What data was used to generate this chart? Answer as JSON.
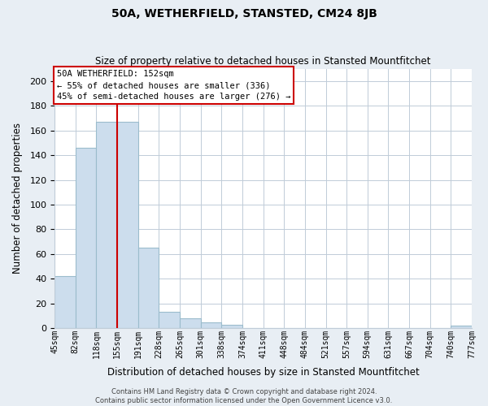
{
  "title": "50A, WETHERFIELD, STANSTED, CM24 8JB",
  "subtitle": "Size of property relative to detached houses in Stansted Mountfitchet",
  "xlabel": "Distribution of detached houses by size in Stansted Mountfitchet",
  "ylabel": "Number of detached properties",
  "bar_values": [
    42,
    146,
    167,
    167,
    65,
    13,
    8,
    5,
    3,
    0,
    0,
    0,
    0,
    0,
    0,
    0,
    0,
    0,
    0,
    2
  ],
  "bar_labels": [
    "45sqm",
    "82sqm",
    "118sqm",
    "155sqm",
    "191sqm",
    "228sqm",
    "265sqm",
    "301sqm",
    "338sqm",
    "374sqm",
    "411sqm",
    "448sqm",
    "484sqm",
    "521sqm",
    "557sqm",
    "594sqm",
    "631sqm",
    "667sqm",
    "704sqm",
    "740sqm",
    "777sqm"
  ],
  "bar_color": "#ccdded",
  "bar_edge_color": "#9bbccc",
  "vline_x": 3.0,
  "vline_color": "#cc0000",
  "annotation_line1": "50A WETHERFIELD: 152sqm",
  "annotation_line2": "← 55% of detached houses are smaller (336)",
  "annotation_line3": "45% of semi-detached houses are larger (276) →",
  "ylim": [
    0,
    210
  ],
  "yticks": [
    0,
    20,
    40,
    60,
    80,
    100,
    120,
    140,
    160,
    180,
    200
  ],
  "footer_text": "Contains HM Land Registry data © Crown copyright and database right 2024.\nContains public sector information licensed under the Open Government Licence v3.0.",
  "bg_color": "#e8eef4",
  "plot_bg_color": "#ffffff",
  "grid_color": "#c0ccd8"
}
